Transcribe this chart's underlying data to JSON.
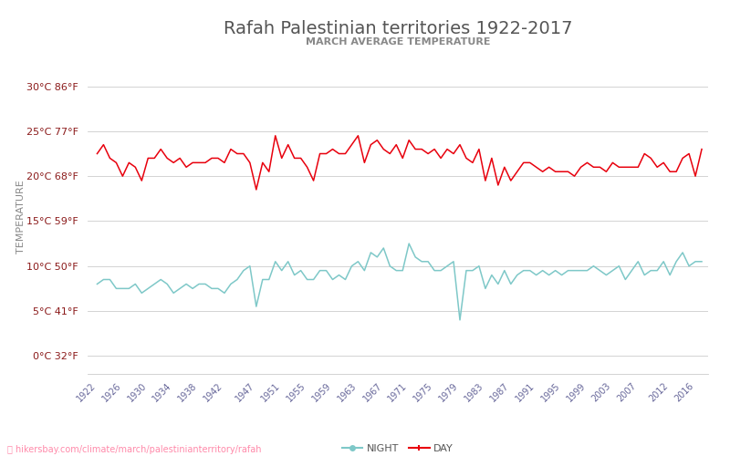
{
  "title": "Rafah Palestinian territories 1922-2017",
  "subtitle": "MARCH AVERAGE TEMPERATURE",
  "ylabel": "TEMPERATURE",
  "years": [
    1922,
    1923,
    1924,
    1925,
    1926,
    1927,
    1928,
    1929,
    1930,
    1931,
    1932,
    1933,
    1934,
    1935,
    1936,
    1937,
    1938,
    1939,
    1940,
    1941,
    1942,
    1943,
    1944,
    1945,
    1946,
    1947,
    1948,
    1949,
    1950,
    1951,
    1952,
    1953,
    1954,
    1955,
    1956,
    1957,
    1958,
    1959,
    1960,
    1961,
    1962,
    1963,
    1964,
    1965,
    1966,
    1967,
    1968,
    1969,
    1970,
    1971,
    1972,
    1973,
    1974,
    1975,
    1976,
    1977,
    1978,
    1979,
    1980,
    1981,
    1982,
    1983,
    1984,
    1985,
    1986,
    1987,
    1988,
    1989,
    1990,
    1991,
    1992,
    1993,
    1994,
    1995,
    1996,
    1997,
    1998,
    1999,
    2000,
    2001,
    2002,
    2003,
    2004,
    2005,
    2006,
    2007,
    2008,
    2009,
    2010,
    2011,
    2012,
    2013,
    2014,
    2015,
    2016,
    2017
  ],
  "day_temps": [
    22.5,
    23.5,
    22.0,
    21.5,
    20.0,
    21.5,
    21.0,
    19.5,
    22.0,
    22.0,
    23.0,
    22.0,
    21.5,
    22.0,
    21.0,
    21.5,
    21.5,
    21.5,
    22.0,
    22.0,
    21.5,
    23.0,
    22.5,
    22.5,
    21.5,
    18.5,
    21.5,
    20.5,
    24.5,
    22.0,
    23.5,
    22.0,
    22.0,
    21.0,
    19.5,
    22.5,
    22.5,
    23.0,
    22.5,
    22.5,
    23.5,
    24.5,
    21.5,
    23.5,
    24.0,
    23.0,
    22.5,
    23.5,
    22.0,
    24.0,
    23.0,
    23.0,
    22.5,
    23.0,
    22.0,
    23.0,
    22.5,
    23.5,
    22.0,
    21.5,
    23.0,
    19.5,
    22.0,
    19.0,
    21.0,
    19.5,
    20.5,
    21.5,
    21.5,
    21.0,
    20.5,
    21.0,
    20.5,
    20.5,
    20.5,
    20.0,
    21.0,
    21.5,
    21.0,
    21.0,
    20.5,
    21.5,
    21.0,
    21.0,
    21.0,
    21.0,
    22.5,
    22.0,
    21.0,
    21.5,
    20.5,
    20.5,
    22.0,
    22.5,
    20.0,
    23.0
  ],
  "night_temps": [
    8.0,
    8.5,
    8.5,
    7.5,
    7.5,
    7.5,
    8.0,
    7.0,
    7.5,
    8.0,
    8.5,
    8.0,
    7.0,
    7.5,
    8.0,
    7.5,
    8.0,
    8.0,
    7.5,
    7.5,
    7.0,
    8.0,
    8.5,
    9.5,
    10.0,
    5.5,
    8.5,
    8.5,
    10.5,
    9.5,
    10.5,
    9.0,
    9.5,
    8.5,
    8.5,
    9.5,
    9.5,
    8.5,
    9.0,
    8.5,
    10.0,
    10.5,
    9.5,
    11.5,
    11.0,
    12.0,
    10.0,
    9.5,
    9.5,
    12.5,
    11.0,
    10.5,
    10.5,
    9.5,
    9.5,
    10.0,
    10.5,
    4.0,
    9.5,
    9.5,
    10.0,
    7.5,
    9.0,
    8.0,
    9.5,
    8.0,
    9.0,
    9.5,
    9.5,
    9.0,
    9.5,
    9.0,
    9.5,
    9.0,
    9.5,
    9.5,
    9.5,
    9.5,
    10.0,
    9.5,
    9.0,
    9.5,
    10.0,
    8.5,
    9.5,
    10.5,
    9.0,
    9.5,
    9.5,
    10.5,
    9.0,
    10.5,
    11.5,
    10.0,
    10.5,
    10.5
  ],
  "day_color": "#e8000d",
  "night_color": "#7ec8c8",
  "background_color": "#ffffff",
  "grid_color": "#cccccc",
  "title_color": "#555555",
  "subtitle_color": "#888888",
  "ylabel_color": "#888888",
  "ytick_label_color": "#8b1a1a",
  "yticks_celsius": [
    0,
    5,
    10,
    15,
    20,
    25,
    30
  ],
  "yticks_fahrenheit": [
    32,
    41,
    50,
    59,
    68,
    77,
    86
  ],
  "xtick_years": [
    1922,
    1926,
    1930,
    1934,
    1938,
    1942,
    1947,
    1951,
    1955,
    1959,
    1963,
    1967,
    1971,
    1975,
    1979,
    1983,
    1987,
    1991,
    1995,
    1999,
    2003,
    2007,
    2012,
    2016
  ],
  "ylim": [
    -2,
    33
  ],
  "xlim": [
    1920.5,
    2018
  ],
  "legend_night_label": "NIGHT",
  "legend_day_label": "DAY",
  "url_text": "hikersbay.com/climate/march/palestinianterritory/rafah",
  "url_color": "#ff8aaa",
  "title_fontsize": 14,
  "subtitle_fontsize": 8,
  "ytick_fontsize": 8,
  "xtick_fontsize": 7,
  "ylabel_fontsize": 8,
  "legend_fontsize": 8
}
